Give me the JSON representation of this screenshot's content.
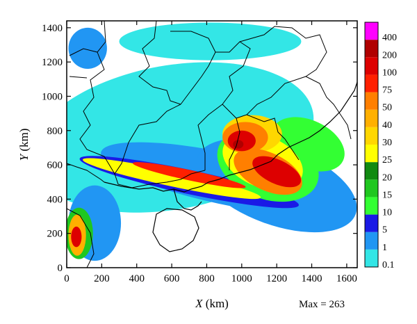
{
  "chart_data": {
    "type": "heatmap",
    "xlabel_var": "X",
    "xlabel_unit": " (km)",
    "ylabel_var": "Y",
    "ylabel_unit": " (km)",
    "xlim": [
      0,
      1660
    ],
    "ylim": [
      0,
      1440
    ],
    "x_ticks": [
      0,
      200,
      400,
      600,
      800,
      1000,
      1200,
      1400,
      1600
    ],
    "y_ticks": [
      0,
      200,
      400,
      600,
      800,
      1000,
      1200,
      1400
    ],
    "annotation": "Max = 263",
    "colorbar": {
      "levels": [
        "0.1",
        "1",
        "5",
        "10",
        "15",
        "20",
        "25",
        "30",
        "40",
        "50",
        "75",
        "100",
        "200",
        "400"
      ],
      "colors": [
        "#33e6e6",
        "#2196f3",
        "#1a1ae6",
        "#33ff33",
        "#1fc71f",
        "#118a11",
        "#ffff00",
        "#ffd700",
        "#ffb000",
        "#ff7f00",
        "#ff2000",
        "#dd0000",
        "#b00000",
        "#ff00ff"
      ]
    },
    "rain_regions": [
      {
        "cx": 600,
        "cy": 760,
        "rx": 820,
        "ry": 420,
        "rot": -10,
        "level": 0
      },
      {
        "cx": 820,
        "cy": 1320,
        "rx": 520,
        "ry": 110,
        "rot": 0,
        "level": 0
      },
      {
        "cx": 120,
        "cy": 1280,
        "rx": 110,
        "ry": 120,
        "rot": 0,
        "level": 1
      },
      {
        "cx": 900,
        "cy": 520,
        "rx": 720,
        "ry": 150,
        "rot": 12,
        "level": 1
      },
      {
        "cx": 1200,
        "cy": 480,
        "rx": 480,
        "ry": 230,
        "rot": 20,
        "level": 1
      },
      {
        "cx": 160,
        "cy": 260,
        "rx": 150,
        "ry": 220,
        "rot": 0,
        "level": 1
      },
      {
        "cx": 700,
        "cy": 500,
        "rx": 640,
        "ry": 70,
        "rot": 12,
        "level": 2
      },
      {
        "cx": 1150,
        "cy": 600,
        "rx": 300,
        "ry": 200,
        "rot": 20,
        "level": 3
      },
      {
        "cx": 1380,
        "cy": 720,
        "rx": 220,
        "ry": 140,
        "rot": 25,
        "level": 3
      },
      {
        "cx": 70,
        "cy": 200,
        "rx": 80,
        "ry": 150,
        "rot": 0,
        "level": 4
      },
      {
        "cx": 600,
        "cy": 520,
        "rx": 520,
        "ry": 45,
        "rot": 12,
        "level": 6
      },
      {
        "cx": 1120,
        "cy": 620,
        "rx": 240,
        "ry": 150,
        "rot": 22,
        "level": 6
      },
      {
        "cx": 1060,
        "cy": 780,
        "rx": 170,
        "ry": 110,
        "rot": 0,
        "level": 7
      },
      {
        "cx": 60,
        "cy": 190,
        "rx": 50,
        "ry": 120,
        "rot": 0,
        "level": 8
      },
      {
        "cx": 1150,
        "cy": 560,
        "rx": 210,
        "ry": 110,
        "rot": 25,
        "level": 9
      },
      {
        "cx": 1020,
        "cy": 760,
        "rx": 130,
        "ry": 90,
        "rot": 0,
        "level": 9
      },
      {
        "cx": 700,
        "cy": 540,
        "rx": 330,
        "ry": 30,
        "rot": 12,
        "level": 10
      },
      {
        "cx": 1200,
        "cy": 560,
        "rx": 150,
        "ry": 70,
        "rot": 25,
        "level": 11
      },
      {
        "cx": 1000,
        "cy": 740,
        "rx": 80,
        "ry": 60,
        "rot": 0,
        "level": 11
      },
      {
        "cx": 55,
        "cy": 180,
        "rx": 30,
        "ry": 60,
        "rot": 0,
        "level": 11
      },
      {
        "cx": 980,
        "cy": 720,
        "rx": 30,
        "ry": 25,
        "rot": 0,
        "level": 12
      }
    ]
  }
}
